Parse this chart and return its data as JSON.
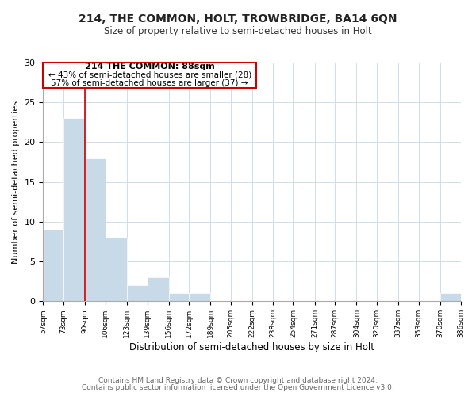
{
  "title": "214, THE COMMON, HOLT, TROWBRIDGE, BA14 6QN",
  "subtitle": "Size of property relative to semi-detached houses in Holt",
  "xlabel": "Distribution of semi-detached houses by size in Holt",
  "ylabel": "Number of semi-detached properties",
  "bin_edges": [
    57,
    73,
    90,
    106,
    123,
    139,
    156,
    172,
    189,
    205,
    222,
    238,
    254,
    271,
    287,
    304,
    320,
    337,
    353,
    370,
    386
  ],
  "bar_heights": [
    9,
    23,
    18,
    8,
    2,
    3,
    1,
    1,
    0,
    0,
    0,
    0,
    0,
    0,
    0,
    0,
    0,
    0,
    0,
    1
  ],
  "bar_color": "#c8d9e8",
  "bar_edgecolor": "#ffffff",
  "vline_x": 90,
  "vline_color": "#cc0000",
  "ylim": [
    0,
    30
  ],
  "yticks": [
    0,
    5,
    10,
    15,
    20,
    25,
    30
  ],
  "annotation_title": "214 THE COMMON: 88sqm",
  "annotation_line1": "← 43% of semi-detached houses are smaller (28)",
  "annotation_line2": "57% of semi-detached houses are larger (37) →",
  "annotation_box_color": "#ffffff",
  "annotation_box_edgecolor": "#cc0000",
  "footer_line1": "Contains HM Land Registry data © Crown copyright and database right 2024.",
  "footer_line2": "Contains public sector information licensed under the Open Government Licence v3.0.",
  "background_color": "#ffffff",
  "grid_color": "#d0dce8",
  "tick_labels": [
    "57sqm",
    "73sqm",
    "90sqm",
    "106sqm",
    "123sqm",
    "139sqm",
    "156sqm",
    "172sqm",
    "189sqm",
    "205sqm",
    "222sqm",
    "238sqm",
    "254sqm",
    "271sqm",
    "287sqm",
    "304sqm",
    "320sqm",
    "337sqm",
    "353sqm",
    "370sqm",
    "386sqm"
  ],
  "title_fontsize": 10,
  "subtitle_fontsize": 8.5,
  "xlabel_fontsize": 8.5,
  "ylabel_fontsize": 8,
  "footer_fontsize": 6.5
}
